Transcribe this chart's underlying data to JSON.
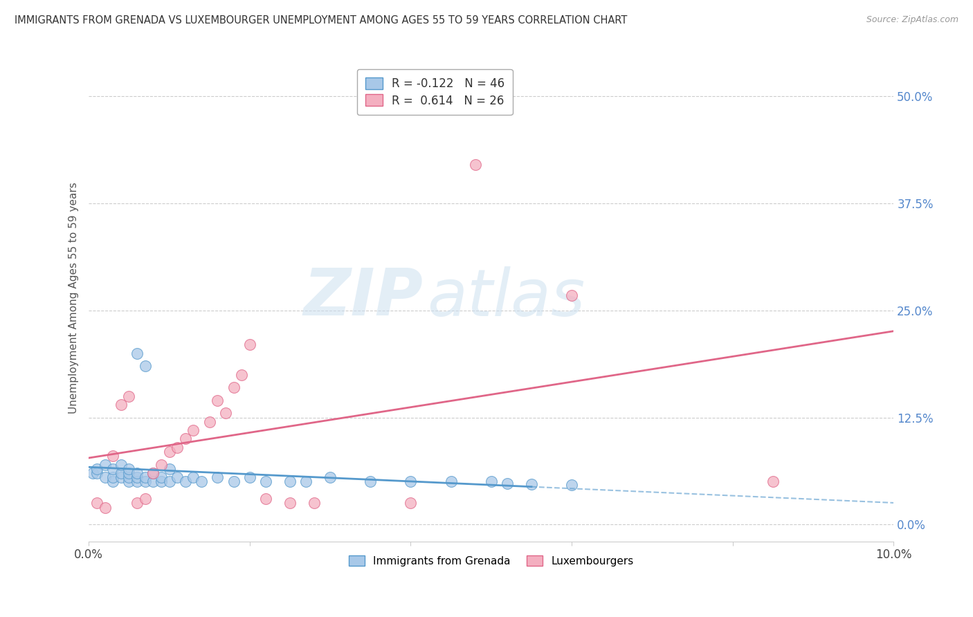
{
  "title": "IMMIGRANTS FROM GRENADA VS LUXEMBOURGER UNEMPLOYMENT AMONG AGES 55 TO 59 YEARS CORRELATION CHART",
  "source": "Source: ZipAtlas.com",
  "ylabel": "Unemployment Among Ages 55 to 59 years",
  "xlim": [
    0.0,
    0.1
  ],
  "ylim": [
    -0.02,
    0.55
  ],
  "yticks": [
    0.0,
    0.125,
    0.25,
    0.375,
    0.5
  ],
  "ytick_labels": [
    "0.0%",
    "12.5%",
    "25.0%",
    "37.5%",
    "50.0%"
  ],
  "xticks": [
    0.0,
    0.1
  ],
  "xtick_labels": [
    "0.0%",
    "10.0%"
  ],
  "legend_labels": [
    "Immigrants from Grenada",
    "Luxembourgers"
  ],
  "blue_R": -0.122,
  "blue_N": 46,
  "pink_R": 0.614,
  "pink_N": 26,
  "blue_color": "#a8c8e8",
  "pink_color": "#f4afc0",
  "blue_edge_color": "#5599cc",
  "pink_edge_color": "#e06688",
  "blue_line_color": "#5599cc",
  "pink_line_color": "#e06688",
  "blue_line_solid_end": 0.055,
  "blue_line_dashed_start": 0.055,
  "watermark_zip_color": "#c8dff0",
  "watermark_atlas_color": "#c8dff0",
  "background_color": "#ffffff",
  "grid_color": "#cccccc",
  "blue_scatter_x": [
    0.0005,
    0.001,
    0.001,
    0.002,
    0.002,
    0.003,
    0.003,
    0.003,
    0.004,
    0.004,
    0.004,
    0.005,
    0.005,
    0.005,
    0.005,
    0.006,
    0.006,
    0.006,
    0.006,
    0.007,
    0.007,
    0.007,
    0.008,
    0.008,
    0.009,
    0.009,
    0.01,
    0.01,
    0.011,
    0.012,
    0.013,
    0.014,
    0.016,
    0.018,
    0.02,
    0.022,
    0.025,
    0.027,
    0.03,
    0.035,
    0.04,
    0.045,
    0.05,
    0.052,
    0.055,
    0.06
  ],
  "blue_scatter_y": [
    0.06,
    0.06,
    0.065,
    0.055,
    0.07,
    0.05,
    0.055,
    0.065,
    0.055,
    0.06,
    0.07,
    0.05,
    0.055,
    0.06,
    0.065,
    0.05,
    0.055,
    0.06,
    0.2,
    0.05,
    0.055,
    0.185,
    0.05,
    0.06,
    0.05,
    0.055,
    0.05,
    0.065,
    0.055,
    0.05,
    0.055,
    0.05,
    0.055,
    0.05,
    0.055,
    0.05,
    0.05,
    0.05,
    0.055,
    0.05,
    0.05,
    0.05,
    0.05,
    0.048,
    0.047,
    0.046
  ],
  "pink_scatter_x": [
    0.001,
    0.002,
    0.003,
    0.004,
    0.005,
    0.006,
    0.007,
    0.008,
    0.009,
    0.01,
    0.011,
    0.012,
    0.013,
    0.015,
    0.016,
    0.017,
    0.018,
    0.019,
    0.02,
    0.022,
    0.025,
    0.028,
    0.04,
    0.048,
    0.06,
    0.085
  ],
  "pink_scatter_y": [
    0.025,
    0.02,
    0.08,
    0.14,
    0.15,
    0.025,
    0.03,
    0.06,
    0.07,
    0.085,
    0.09,
    0.1,
    0.11,
    0.12,
    0.145,
    0.13,
    0.16,
    0.175,
    0.21,
    0.03,
    0.025,
    0.025,
    0.025,
    0.42,
    0.268,
    0.05
  ]
}
